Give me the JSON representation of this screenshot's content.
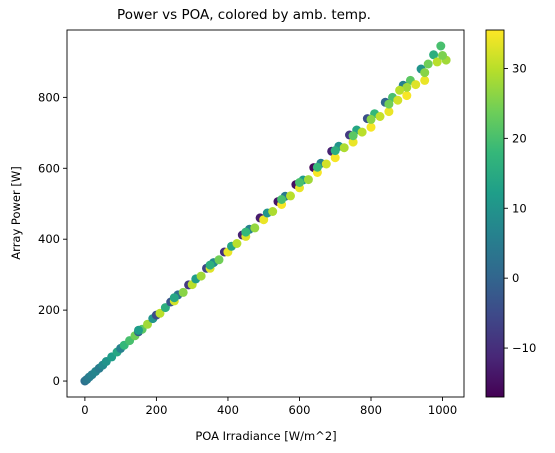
{
  "chart_data": {
    "type": "scatter",
    "title": "Power vs POA, colored by amb. temp.",
    "xlabel": "POA Irradiance [W/m^2]",
    "ylabel": "Array Power [W]",
    "xlim": [
      -50,
      1060
    ],
    "ylim": [
      -45,
      990
    ],
    "xticks": [
      0,
      200,
      400,
      600,
      800,
      1000
    ],
    "xtick_labels": [
      "0",
      "200",
      "400",
      "600",
      "800",
      "1000"
    ],
    "yticks": [
      0,
      200,
      400,
      600,
      800
    ],
    "ytick_labels": [
      "0",
      "200",
      "400",
      "600",
      "800"
    ],
    "grid": false,
    "colormap": "viridis",
    "colorbar": {
      "range": [
        -17,
        35.5
      ],
      "ticks": [
        -10,
        0,
        10,
        20,
        30
      ],
      "tick_labels": [
        "−10",
        "0",
        "10",
        "20",
        "30"
      ]
    },
    "colormap_stops": [
      "#440154",
      "#482878",
      "#3e4989",
      "#31688e",
      "#26828e",
      "#1f9e89",
      "#35b779",
      "#6ece58",
      "#b5de2b",
      "#fde725"
    ],
    "marker_size": 6,
    "points": [
      {
        "x": 0,
        "y": 0,
        "c": 2
      },
      {
        "x": 5,
        "y": 4,
        "c": 4
      },
      {
        "x": 12,
        "y": 11,
        "c": 5
      },
      {
        "x": 20,
        "y": 18,
        "c": 6
      },
      {
        "x": 30,
        "y": 27,
        "c": 7
      },
      {
        "x": 40,
        "y": 36,
        "c": 5
      },
      {
        "x": 50,
        "y": 45,
        "c": 8
      },
      {
        "x": 60,
        "y": 55,
        "c": 10
      },
      {
        "x": 75,
        "y": 68,
        "c": 12
      },
      {
        "x": 90,
        "y": 82,
        "c": 14
      },
      {
        "x": 100,
        "y": 92,
        "c": 6
      },
      {
        "x": 110,
        "y": 101,
        "c": 18
      },
      {
        "x": 125,
        "y": 114,
        "c": 20
      },
      {
        "x": 140,
        "y": 128,
        "c": 24
      },
      {
        "x": 150,
        "y": 139,
        "c": -2
      },
      {
        "x": 160,
        "y": 146,
        "c": 22
      },
      {
        "x": 175,
        "y": 160,
        "c": 28
      },
      {
        "x": 190,
        "y": 176,
        "c": 10
      },
      {
        "x": 200,
        "y": 186,
        "c": -5
      },
      {
        "x": 210,
        "y": 191,
        "c": 30
      },
      {
        "x": 225,
        "y": 207,
        "c": 16
      },
      {
        "x": 240,
        "y": 223,
        "c": -3
      },
      {
        "x": 250,
        "y": 226,
        "c": 32
      },
      {
        "x": 260,
        "y": 243,
        "c": 2
      },
      {
        "x": 275,
        "y": 250,
        "c": 26
      },
      {
        "x": 290,
        "y": 271,
        "c": -8
      },
      {
        "x": 300,
        "y": 272,
        "c": 30
      },
      {
        "x": 310,
        "y": 288,
        "c": 12
      },
      {
        "x": 325,
        "y": 296,
        "c": 28
      },
      {
        "x": 340,
        "y": 318,
        "c": -6
      },
      {
        "x": 350,
        "y": 318,
        "c": 33
      },
      {
        "x": 360,
        "y": 334,
        "c": 8
      },
      {
        "x": 375,
        "y": 342,
        "c": 24
      },
      {
        "x": 390,
        "y": 364,
        "c": -10
      },
      {
        "x": 400,
        "y": 364,
        "c": 34
      },
      {
        "x": 410,
        "y": 380,
        "c": 14
      },
      {
        "x": 425,
        "y": 388,
        "c": 30
      },
      {
        "x": 440,
        "y": 412,
        "c": -12
      },
      {
        "x": 450,
        "y": 408,
        "c": 33
      },
      {
        "x": 460,
        "y": 428,
        "c": 6
      },
      {
        "x": 475,
        "y": 432,
        "c": 27
      },
      {
        "x": 490,
        "y": 460,
        "c": -13
      },
      {
        "x": 500,
        "y": 455,
        "c": 34
      },
      {
        "x": 510,
        "y": 474,
        "c": 10
      },
      {
        "x": 525,
        "y": 478,
        "c": 29
      },
      {
        "x": 540,
        "y": 506,
        "c": -14
      },
      {
        "x": 550,
        "y": 498,
        "c": 35
      },
      {
        "x": 560,
        "y": 521,
        "c": 4
      },
      {
        "x": 575,
        "y": 522,
        "c": 30
      },
      {
        "x": 590,
        "y": 554,
        "c": -15
      },
      {
        "x": 600,
        "y": 545,
        "c": 34
      },
      {
        "x": 610,
        "y": 567,
        "c": 12
      },
      {
        "x": 625,
        "y": 568,
        "c": 28
      },
      {
        "x": 640,
        "y": 602,
        "c": -16
      },
      {
        "x": 650,
        "y": 588,
        "c": 35
      },
      {
        "x": 660,
        "y": 614,
        "c": 6
      },
      {
        "x": 675,
        "y": 612,
        "c": 32
      },
      {
        "x": 690,
        "y": 648,
        "c": -12
      },
      {
        "x": 700,
        "y": 630,
        "c": 35
      },
      {
        "x": 710,
        "y": 662,
        "c": 10
      },
      {
        "x": 725,
        "y": 658,
        "c": 29
      },
      {
        "x": 740,
        "y": 694,
        "c": -8
      },
      {
        "x": 750,
        "y": 674,
        "c": 34
      },
      {
        "x": 760,
        "y": 708,
        "c": 14
      },
      {
        "x": 775,
        "y": 702,
        "c": 30
      },
      {
        "x": 790,
        "y": 740,
        "c": -4
      },
      {
        "x": 800,
        "y": 716,
        "c": 35
      },
      {
        "x": 810,
        "y": 754,
        "c": 18
      },
      {
        "x": 825,
        "y": 746,
        "c": 31
      },
      {
        "x": 840,
        "y": 786,
        "c": 0
      },
      {
        "x": 850,
        "y": 760,
        "c": 34
      },
      {
        "x": 860,
        "y": 800,
        "c": 20
      },
      {
        "x": 875,
        "y": 792,
        "c": 32
      },
      {
        "x": 890,
        "y": 834,
        "c": 6
      },
      {
        "x": 900,
        "y": 805,
        "c": 35
      },
      {
        "x": 910,
        "y": 848,
        "c": 22
      },
      {
        "x": 925,
        "y": 836,
        "c": 33
      },
      {
        "x": 940,
        "y": 880,
        "c": 10
      },
      {
        "x": 950,
        "y": 848,
        "c": 34
      },
      {
        "x": 960,
        "y": 894,
        "c": 24
      },
      {
        "x": 975,
        "y": 920,
        "c": 16
      },
      {
        "x": 985,
        "y": 900,
        "c": 30
      },
      {
        "x": 995,
        "y": 945,
        "c": 20
      },
      {
        "x": 1010,
        "y": 905,
        "c": 28
      },
      {
        "x": 150,
        "y": 143,
        "c": 12
      },
      {
        "x": 250,
        "y": 235,
        "c": 14
      },
      {
        "x": 350,
        "y": 327,
        "c": 16
      },
      {
        "x": 450,
        "y": 420,
        "c": 18
      },
      {
        "x": 550,
        "y": 512,
        "c": 20
      },
      {
        "x": 650,
        "y": 603,
        "c": 18
      },
      {
        "x": 750,
        "y": 692,
        "c": 22
      },
      {
        "x": 850,
        "y": 781,
        "c": 24
      },
      {
        "x": 950,
        "y": 870,
        "c": 26
      },
      {
        "x": 600,
        "y": 560,
        "c": 20
      },
      {
        "x": 700,
        "y": 650,
        "c": 16
      },
      {
        "x": 800,
        "y": 738,
        "c": 26
      },
      {
        "x": 900,
        "y": 828,
        "c": 28
      },
      {
        "x": 1000,
        "y": 918,
        "c": 25
      },
      {
        "x": 880,
        "y": 820,
        "c": 30
      }
    ]
  }
}
